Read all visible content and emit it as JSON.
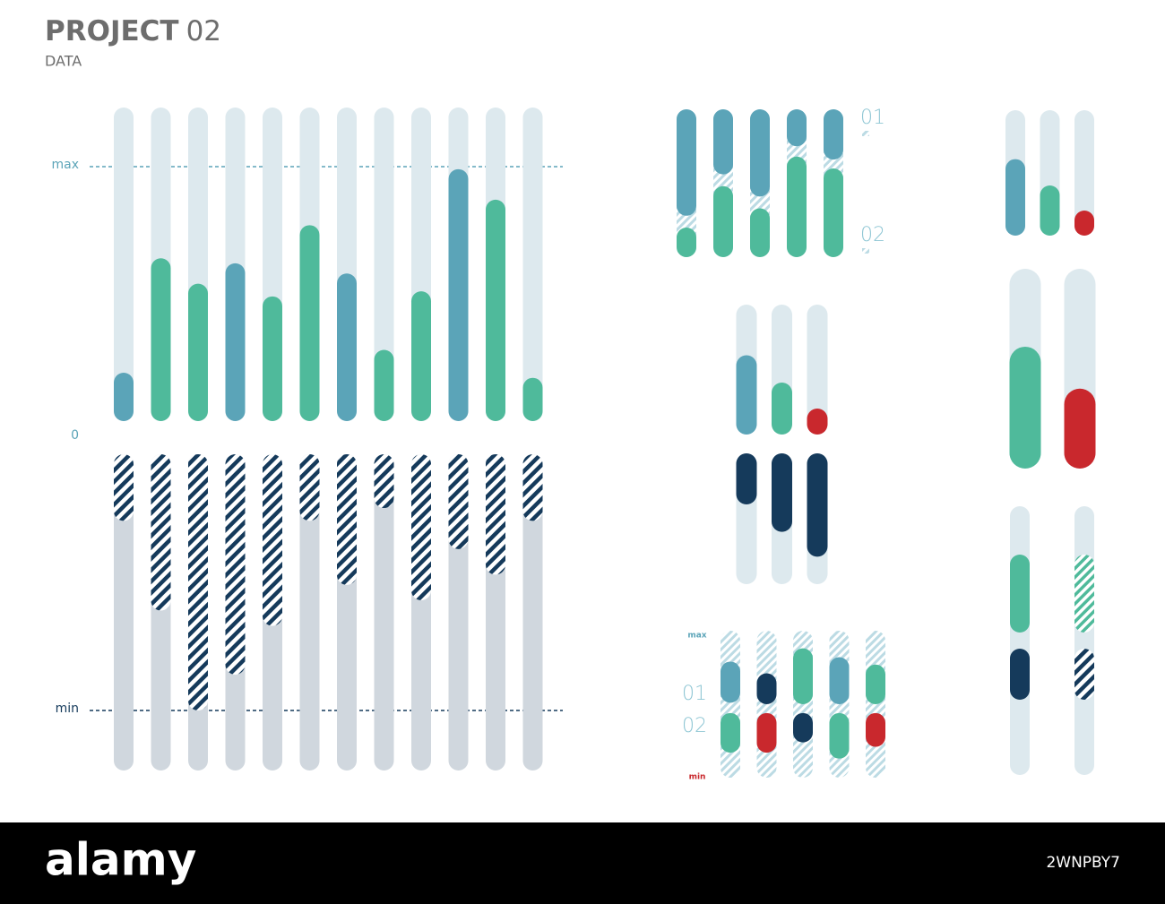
{
  "header": {
    "title": "PROJECT",
    "number": "02",
    "subtitle": "DATA"
  },
  "chart_data": [
    {
      "type": "diverging-bar",
      "ylim": [
        -1,
        1
      ],
      "yticks": [
        {
          "value": 1,
          "label": "max"
        },
        0,
        {
          "value": -1,
          "label": "min"
        }
      ],
      "series": [
        {
          "colors": [
            "#5ba4b8",
            "#4fba9b",
            "#4fba9b",
            "#5ba4b8",
            "#4fba9b",
            "#4fba9b",
            "#5ba4b8",
            "#4fba9b",
            "#4fba9b",
            "#5ba4b8",
            "#4fba9b",
            "#4fba9b"
          ],
          "values": [
            0.19,
            0.64,
            0.54,
            0.62,
            0.49,
            0.77,
            0.58,
            0.28,
            0.51,
            0.99,
            0.87,
            0.17
          ]
        },
        {
          "color": "#153a5b",
          "hatched": true,
          "values": [
            -0.26,
            -0.61,
            -1.0,
            -0.86,
            -0.67,
            -0.26,
            -0.51,
            -0.21,
            -0.57,
            -0.37,
            -0.47,
            -0.26
          ]
        }
      ]
    },
    {
      "type": "stacked-bar",
      "ylim": [
        0,
        1
      ],
      "series": [
        {
          "name": "01",
          "color": "#5ba4b8",
          "values": [
            0.72,
            0.44,
            0.59,
            0.25,
            0.34
          ]
        },
        {
          "name": "02",
          "color": "#4fba9b",
          "values": [
            0.2,
            0.48,
            0.33,
            0.68,
            0.6
          ]
        }
      ]
    },
    {
      "type": "bar",
      "ylim": [
        0,
        1
      ],
      "colors": [
        "#5ba4b8",
        "#4fba9b",
        "#c9282d"
      ],
      "values": [
        0.61,
        0.4,
        0.2
      ]
    },
    {
      "type": "split-bar",
      "ylim": [
        0,
        1
      ],
      "series": [
        {
          "colors": [
            "#5ba4b8",
            "#4fba9b",
            "#c9282d"
          ],
          "values": [
            0.61,
            0.4,
            0.2
          ]
        },
        {
          "color": "#153a5b",
          "values": [
            0.39,
            0.6,
            0.79
          ]
        }
      ]
    },
    {
      "type": "bar",
      "ylim": [
        0,
        1
      ],
      "colors": [
        "#4fba9b",
        "#c9282d"
      ],
      "values": [
        0.61,
        0.4
      ]
    },
    {
      "type": "range-bar",
      "ylim": [
        0,
        1
      ],
      "series": [
        {
          "color": "#4fba9b",
          "hatched": [
            false,
            true
          ],
          "values": [
            [
              0.53,
              0.82
            ],
            [
              0.53,
              0.82
            ]
          ]
        },
        {
          "color": "#153a5b",
          "hatched": [
            false,
            true
          ],
          "values": [
            [
              0.28,
              0.47
            ],
            [
              0.28,
              0.47
            ]
          ]
        }
      ]
    },
    {
      "type": "range-bar",
      "ylim": [
        0,
        1
      ],
      "hatched_track": true,
      "yticks": [
        {
          "value": 1,
          "label": "max"
        },
        {
          "value": 0,
          "label": "min"
        }
      ],
      "series": [
        {
          "name": "01",
          "colors": [
            "#5ba4b8",
            "#153a5b",
            "#4fba9b",
            "#5ba4b8",
            "#4fba9b"
          ],
          "values": [
            [
              0.51,
              0.79
            ],
            [
              0.5,
              0.71
            ],
            [
              0.5,
              0.88
            ],
            [
              0.5,
              0.82
            ],
            [
              0.5,
              0.77
            ]
          ]
        },
        {
          "name": "02",
          "colors": [
            "#4fba9b",
            "#c9282d",
            "#153a5b",
            "#4fba9b",
            "#c9282d"
          ],
          "values": [
            [
              0.17,
              0.44
            ],
            [
              0.17,
              0.44
            ],
            [
              0.24,
              0.44
            ],
            [
              0.13,
              0.44
            ],
            [
              0.21,
              0.44
            ]
          ]
        }
      ]
    }
  ],
  "watermark": {
    "brand": "alamy",
    "id": "2WNPBY7"
  }
}
